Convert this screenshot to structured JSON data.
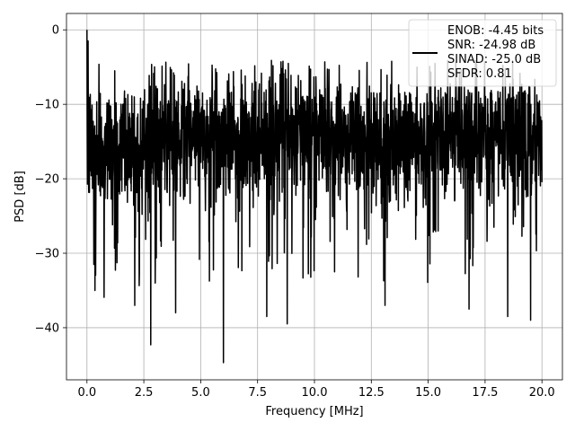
{
  "chart_data": {
    "type": "line",
    "title": "",
    "xlabel": "Frequency [MHz]",
    "ylabel": "PSD [dB]",
    "xlim": [
      -0.9,
      20.9
    ],
    "ylim": [
      -47,
      2.2
    ],
    "xticks": [
      0.0,
      2.5,
      5.0,
      7.5,
      10.0,
      12.5,
      15.0,
      17.5,
      20.0
    ],
    "xtick_labels": [
      "0.0",
      "2.5",
      "5.0",
      "7.5",
      "10.0",
      "12.5",
      "15.0",
      "17.5",
      "20.0"
    ],
    "yticks": [
      0,
      -10,
      -20,
      -30,
      -40
    ],
    "ytick_labels": [
      "0",
      "−10",
      "−20",
      "−30",
      "−40"
    ],
    "grid": true,
    "legend_position": "top-right",
    "series": [
      {
        "name": "ENOB: -4.45 bits\nSNR: -24.98 dB\nSINAD: -25.0 dB\nSFDR: 0.81",
        "color": "#000000",
        "x_start": 0.0,
        "x_end": 20.0,
        "point_count": 2048,
        "envelope_description": "dense noise spectrum; peak 0 dB at DC, typical level -10 to -25 dB, minima down to about -45 dB",
        "notable_points": [
          {
            "x": 0.0,
            "y": 0.0
          },
          {
            "x": 0.05,
            "y": -1.5
          },
          {
            "x": 0.3,
            "y": -31.5
          },
          {
            "x": 0.35,
            "y": -35.0
          },
          {
            "x": 2.1,
            "y": -37.0
          },
          {
            "x": 2.8,
            "y": -42.3
          },
          {
            "x": 3.0,
            "y": -34.0
          },
          {
            "x": 3.9,
            "y": -38.0
          },
          {
            "x": 6.0,
            "y": -44.7
          },
          {
            "x": 7.9,
            "y": -38.5
          },
          {
            "x": 8.8,
            "y": -39.5
          },
          {
            "x": 13.1,
            "y": -37.0
          },
          {
            "x": 16.8,
            "y": -37.5
          },
          {
            "x": 18.5,
            "y": -38.5
          },
          {
            "x": 19.5,
            "y": -39.0
          }
        ]
      }
    ]
  },
  "legend": {
    "lines": [
      "ENOB: -4.45 bits",
      "SNR: -24.98 dB",
      "SINAD: -25.0 dB",
      "SFDR: 0.81"
    ]
  }
}
